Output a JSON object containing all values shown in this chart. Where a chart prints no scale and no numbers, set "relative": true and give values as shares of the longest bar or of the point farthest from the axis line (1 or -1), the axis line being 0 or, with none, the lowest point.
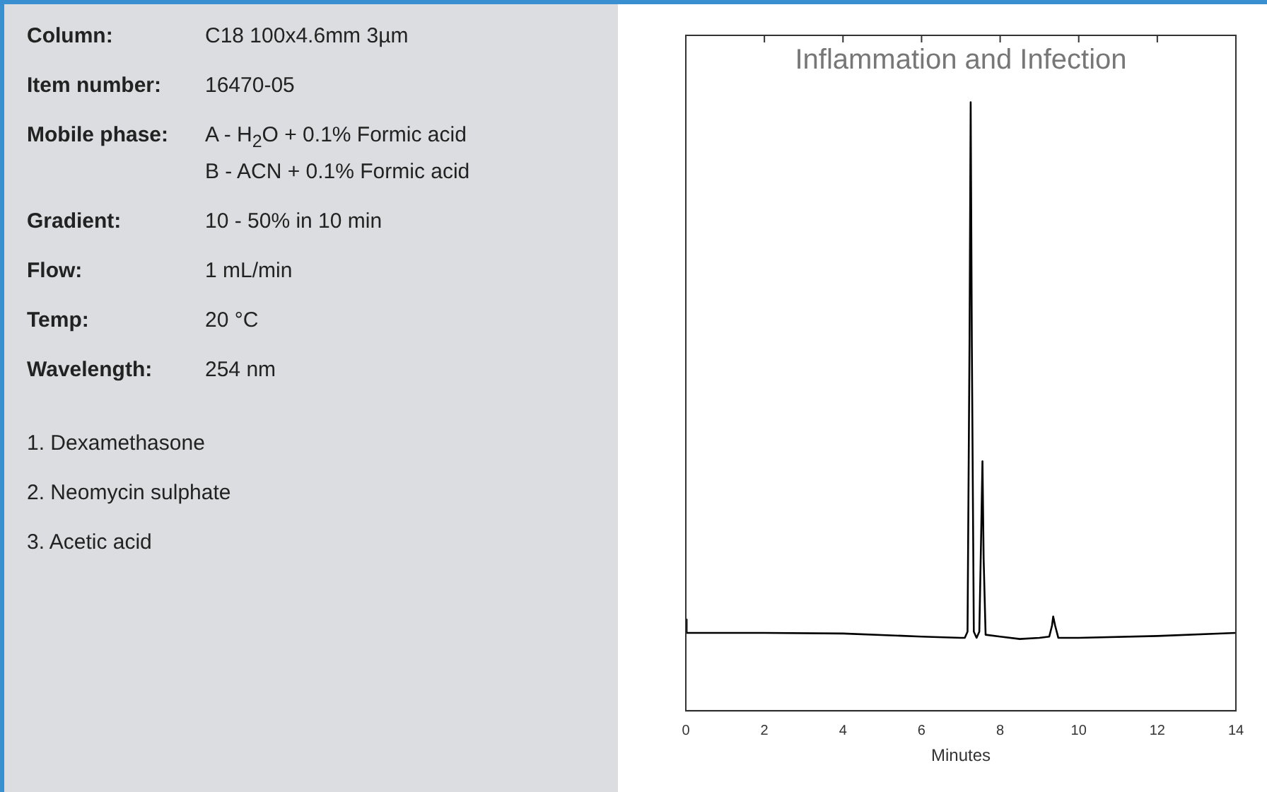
{
  "chart_data": {
    "type": "line",
    "title": "Inflammation and Infection",
    "xlabel": "Minutes",
    "relative": true,
    "tick_labels": "x",
    "grid": false,
    "legend": false,
    "marker": "none",
    "line_style": "solid",
    "xlim": [
      0,
      14
    ],
    "xticks": [
      0,
      2,
      4,
      6,
      8,
      10,
      12,
      14
    ],
    "annotations": [
      "Column: C18 100x4.6mm 3µm",
      "Item number: 16470-05",
      "Mobile phase: A - H$_{2}$O + 0.1% Formic acid\nB - ACN + 0.1% Formic acid",
      "Gradient: 10 - 50% in 10 min",
      "Flow: 1 mL/min",
      "Temp: 20 °C",
      "Wavelength: 254 nm",
      "1. Dexamethasone",
      "2. Neomycin sulphate",
      "3. Acetic acid"
    ],
    "series": [
      {
        "color": "#000000",
        "x": [
          0,
          0.02,
          2,
          4,
          6,
          7,
          7.1,
          7.17,
          7.22,
          7.25,
          7.28,
          7.33,
          7.4,
          7.47,
          7.52,
          7.55,
          7.58,
          7.63,
          8,
          8.5,
          9,
          9.25,
          9.32,
          9.35,
          9.4,
          9.48,
          10,
          12,
          14
        ],
        "values": [
          0.15,
          0.128,
          0.128,
          0.127,
          0.122,
          0.12,
          0.12,
          0.13,
          0.6,
          1,
          0.6,
          0.13,
          0.12,
          0.13,
          0.3,
          0.41,
          0.25,
          0.125,
          0.122,
          0.118,
          0.12,
          0.122,
          0.14,
          0.155,
          0.14,
          0.12,
          0.12,
          0.123,
          0.128
        ]
      }
    ]
  }
}
